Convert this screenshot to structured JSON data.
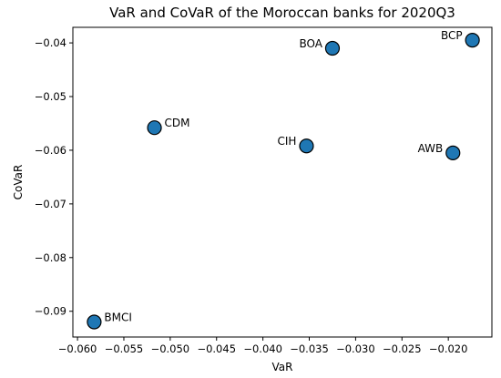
{
  "chart_data": {
    "type": "scatter",
    "title": "VaR and CoVaR of the Moroccan banks for 2020Q3",
    "xlabel": "VaR",
    "ylabel": "CoVaR",
    "xlim": [
      -0.0605,
      -0.0153
    ],
    "ylim": [
      -0.0948,
      -0.0371
    ],
    "xticks": [
      -0.06,
      -0.055,
      -0.05,
      -0.045,
      -0.04,
      -0.035,
      -0.03,
      -0.025,
      -0.02
    ],
    "xtick_labels": [
      "−0.060",
      "−0.055",
      "−0.050",
      "−0.045",
      "−0.040",
      "−0.035",
      "−0.030",
      "−0.025",
      "−0.020"
    ],
    "yticks": [
      -0.09,
      -0.08,
      -0.07,
      -0.06,
      -0.05,
      -0.04
    ],
    "ytick_labels": [
      "−0.09",
      "−0.08",
      "−0.07",
      "−0.06",
      "−0.05",
      "−0.04"
    ],
    "grid": false,
    "marker_color": "#1f77b4",
    "marker_edge_color": "#000000",
    "points": [
      {
        "label": "BCP",
        "x": -0.0174,
        "y": -0.0395,
        "label_side": "left"
      },
      {
        "label": "BOA",
        "x": -0.0325,
        "y": -0.041,
        "label_side": "left"
      },
      {
        "label": "CDM",
        "x": -0.0517,
        "y": -0.0558,
        "label_side": "right"
      },
      {
        "label": "CIH",
        "x": -0.0353,
        "y": -0.0592,
        "label_side": "left"
      },
      {
        "label": "AWB",
        "x": -0.0195,
        "y": -0.0605,
        "label_side": "left"
      },
      {
        "label": "BMCI",
        "x": -0.0582,
        "y": -0.092,
        "label_side": "right"
      }
    ]
  }
}
